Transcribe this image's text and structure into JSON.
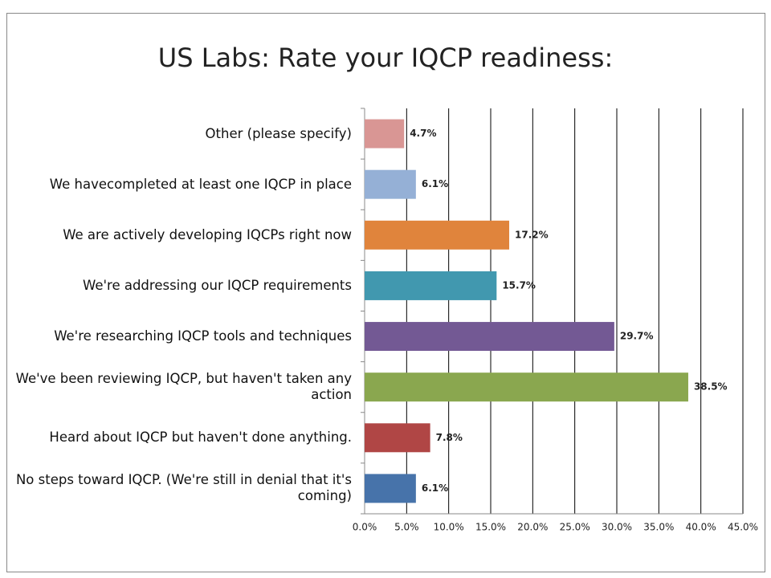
{
  "chart_data": {
    "type": "hbar",
    "title": "US Labs: Rate your IQCP readiness:",
    "categories": [
      "Other (please specify)",
      "We havecompleted at least one IQCP in place",
      "We are actively developing IQCPs right now",
      "We're addressing our IQCP requirements",
      "We're researching IQCP tools and techniques",
      "We've been reviewing IQCP, but haven't taken any action",
      "Heard about IQCP but haven't done anything.",
      "No steps toward IQCP. (We're still in denial that it's coming)"
    ],
    "values": [
      4.7,
      6.1,
      17.2,
      15.7,
      29.7,
      38.5,
      7.8,
      6.1
    ],
    "value_labels": [
      "4.7%",
      "6.1%",
      "17.2%",
      "15.7%",
      "29.7%",
      "38.5%",
      "7.8%",
      "6.1%"
    ],
    "colors": [
      "#d99694",
      "#95b0d6",
      "#e0843c",
      "#4198af",
      "#735994",
      "#8aa74f",
      "#b04645",
      "#4773aa"
    ],
    "xlim": [
      0,
      45
    ],
    "xticks": [
      {
        "value": 0,
        "label": "0.0%"
      },
      {
        "value": 5,
        "label": "5.0%"
      },
      {
        "value": 10,
        "label": "10.0%"
      },
      {
        "value": 15,
        "label": "15.0%"
      },
      {
        "value": 20,
        "label": "20.0%"
      },
      {
        "value": 25,
        "label": "25.0%"
      },
      {
        "value": 30,
        "label": "30.0%"
      },
      {
        "value": 35,
        "label": "35.0%"
      },
      {
        "value": 40,
        "label": "40.0%"
      },
      {
        "value": 45,
        "label": "45.0%"
      }
    ],
    "grid": true
  }
}
